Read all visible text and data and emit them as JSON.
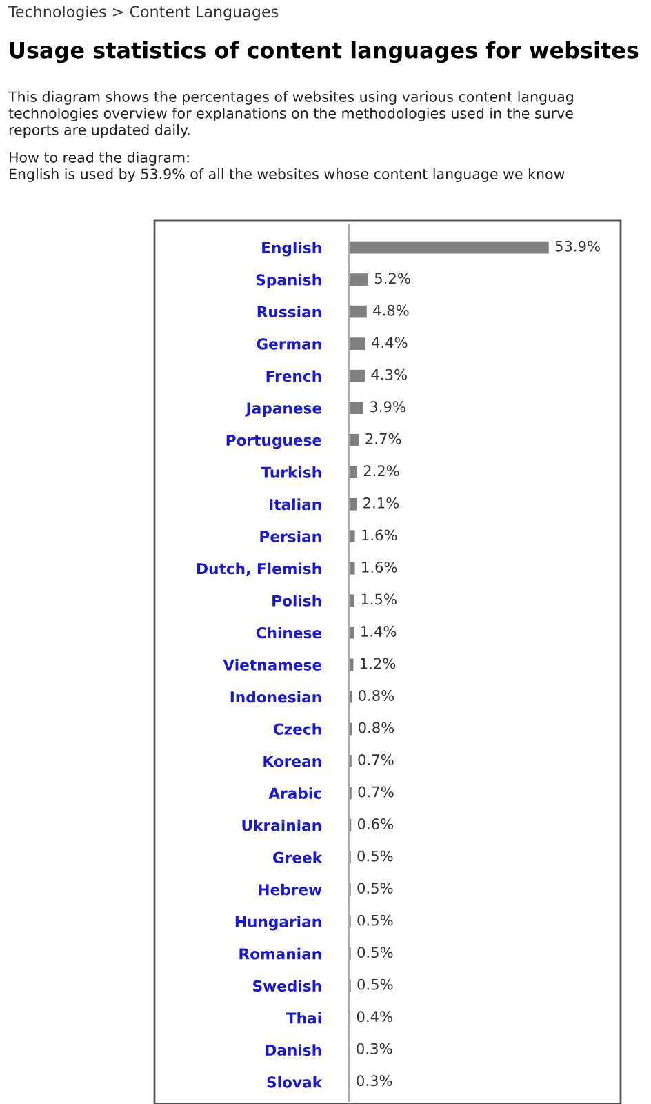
{
  "chart_data": {
    "type": "bar",
    "orientation": "horizontal",
    "title": "Usage statistics of content languages for websites",
    "annotations": [
      "Technologies > Content Languages",
      "This diagram shows the percentages of websites using various content languag",
      "technologies overview for explanations on the methodologies used in the surve",
      "reports are updated daily.",
      "How to read the diagram:",
      "English is used by 53.9% of all the websites whose content language we know"
    ],
    "categories": [
      "English",
      "Spanish",
      "Russian",
      "German",
      "French",
      "Japanese",
      "Portuguese",
      "Turkish",
      "Italian",
      "Persian",
      "Dutch, Flemish",
      "Polish",
      "Chinese",
      "Vietnamese",
      "Indonesian",
      "Czech",
      "Korean",
      "Arabic",
      "Ukrainian",
      "Greek",
      "Hebrew",
      "Hungarian",
      "Romanian",
      "Swedish",
      "Thai",
      "Danish",
      "Slovak"
    ],
    "values": [
      53.9,
      5.2,
      4.8,
      4.4,
      4.3,
      3.9,
      2.7,
      2.2,
      2.1,
      1.6,
      1.6,
      1.5,
      1.4,
      1.2,
      0.8,
      0.8,
      0.7,
      0.7,
      0.6,
      0.5,
      0.5,
      0.5,
      0.5,
      0.5,
      0.4,
      0.3,
      0.3
    ],
    "value_labels": [
      "53.9%",
      "5.2%",
      "4.8%",
      "4.4%",
      "4.3%",
      "3.9%",
      "2.7%",
      "2.2%",
      "2.1%",
      "1.6%",
      "1.6%",
      "1.5%",
      "1.4%",
      "1.2%",
      "0.8%",
      "0.8%",
      "0.7%",
      "0.7%",
      "0.6%",
      "0.5%",
      "0.5%",
      "0.5%",
      "0.5%",
      "0.5%",
      "0.4%",
      "0.3%",
      "0.3%"
    ],
    "color": "#808080",
    "grid": false,
    "legend": false
  }
}
